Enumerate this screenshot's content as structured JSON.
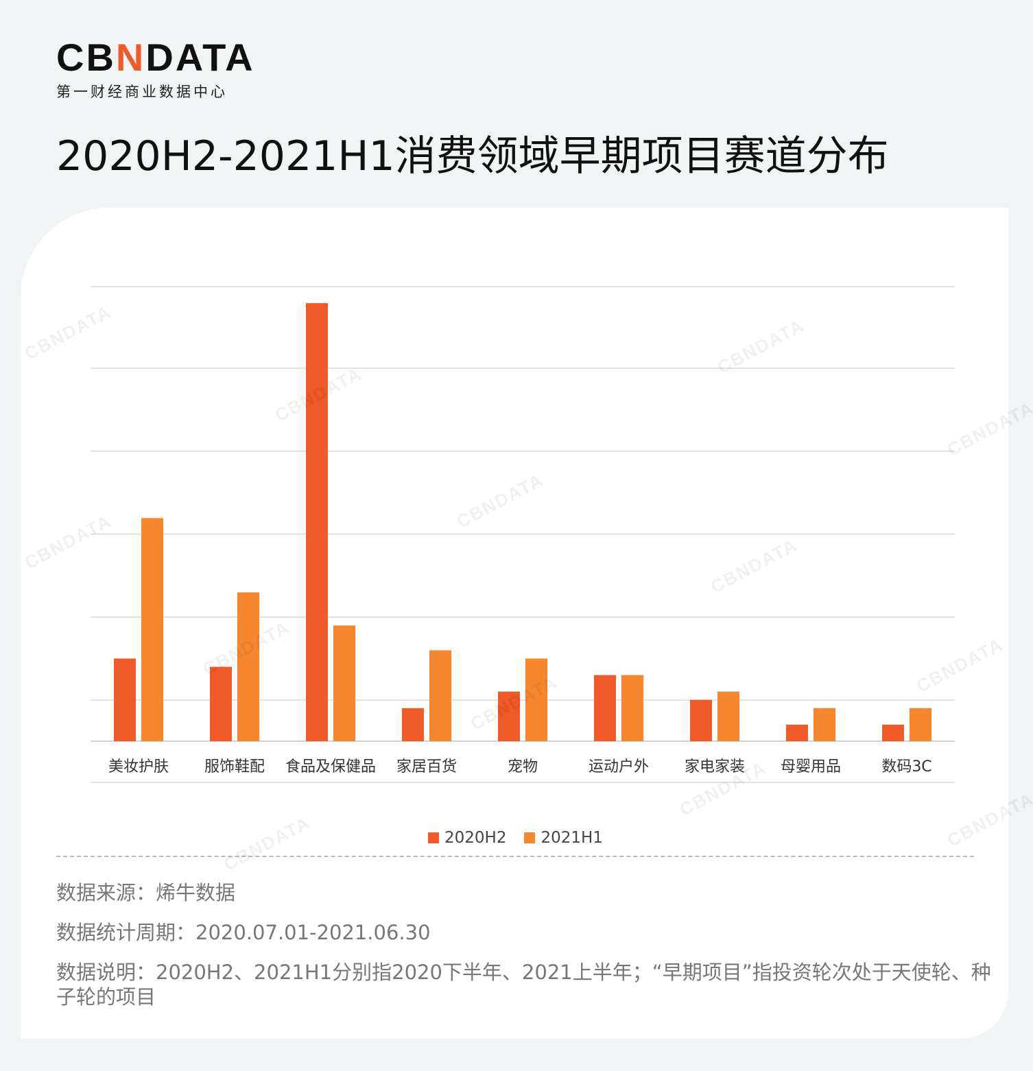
{
  "logo": {
    "text_a": "CB",
    "text_b": "N",
    "text_c": "DATA",
    "subtitle": "第一财经商业数据中心"
  },
  "title": "2020H2-2021H1消费领域早期项目赛道分布",
  "colors": {
    "series_2020H2": "#f05a28",
    "series_2021H1": "#f6872f"
  },
  "chart_data": {
    "type": "bar",
    "categories": [
      "美妆护肤",
      "服饰鞋配",
      "食品及保健品",
      "家居百货",
      "宠物",
      "运动户外",
      "家电家装",
      "母婴用品",
      "数码3C"
    ],
    "series": [
      {
        "name": "2020H2",
        "values": [
          10,
          9,
          53,
          4,
          6,
          8,
          5,
          2,
          2
        ]
      },
      {
        "name": "2021H1",
        "values": [
          27,
          18,
          14,
          11,
          10,
          8,
          6,
          4,
          4
        ]
      }
    ],
    "ylim": [
      0,
      55
    ],
    "grid": true,
    "legend_position": "bottom"
  },
  "legend": {
    "s1": "2020H2",
    "s2": "2021H1"
  },
  "notes": {
    "source": "数据来源：烯牛数据",
    "period": "数据统计周期：2020.07.01-2021.06.30",
    "description": "数据说明：2020H2、2021H1分别指2020下半年、2021上半年；“早期项目”指投资轮次处于天使轮、种子轮的项目"
  }
}
